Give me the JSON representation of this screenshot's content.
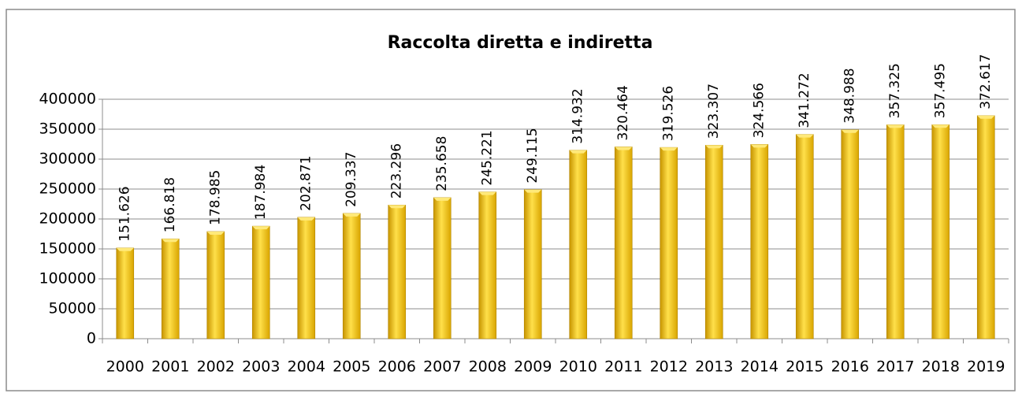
{
  "chart_data": {
    "type": "bar",
    "title": "Raccolta diretta e indiretta",
    "categories": [
      "2000",
      "2001",
      "2002",
      "2003",
      "2004",
      "2005",
      "2006",
      "2007",
      "2008",
      "2009",
      "2010",
      "2011",
      "2012",
      "2013",
      "2014",
      "2015",
      "2016",
      "2017",
      "2018",
      "2019"
    ],
    "values": [
      151626,
      166818,
      178985,
      187984,
      202871,
      209337,
      223296,
      235658,
      245221,
      249115,
      314932,
      320464,
      319526,
      323307,
      324566,
      341272,
      348988,
      357325,
      357495,
      372617
    ],
    "value_labels": [
      "151.626",
      "166.818",
      "178.985",
      "187.984",
      "202.871",
      "209.337",
      "223.296",
      "235.658",
      "245.221",
      "249.115",
      "314.932",
      "320.464",
      "319.526",
      "323.307",
      "324.566",
      "341.272",
      "348.988",
      "357.325",
      "357.495",
      "372.617"
    ],
    "color": "#f5c400",
    "ylim": [
      0,
      400000
    ],
    "yticks": [
      0,
      50000,
      100000,
      150000,
      200000,
      250000,
      300000,
      350000,
      400000
    ],
    "grid": true
  }
}
